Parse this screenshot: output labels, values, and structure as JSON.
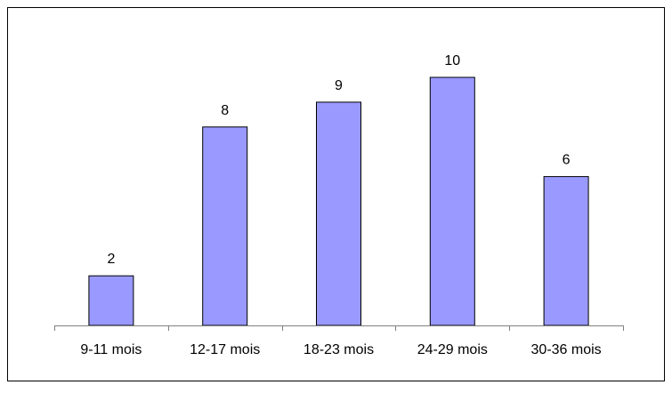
{
  "chart_data": {
    "type": "bar",
    "categories": [
      "9-11 mois",
      "12-17 mois",
      "18-23 mois",
      "24-29 mois",
      "30-36 mois"
    ],
    "values": [
      2,
      8,
      9,
      10,
      6
    ],
    "data_labels": [
      "2",
      "8",
      "9",
      "10",
      "6"
    ],
    "title": "",
    "xlabel": "",
    "ylabel": "",
    "ylim": [
      0,
      10
    ],
    "grid": false,
    "legend": "none",
    "colors": {
      "bar_fill": "#9999ff",
      "bar_stroke": "#000000",
      "frame": "#000000",
      "axis": "#808080",
      "background": "#ffffff"
    }
  }
}
